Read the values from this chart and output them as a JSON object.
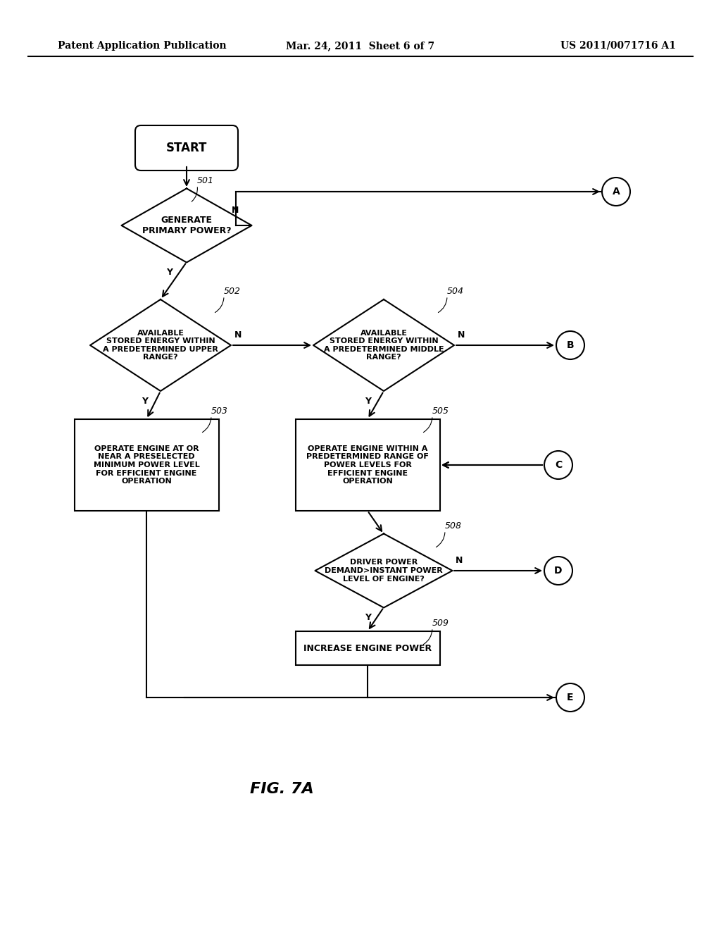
{
  "bg_color": "#ffffff",
  "line_color": "#000000",
  "header_left": "Patent Application Publication",
  "header_center": "Mar. 24, 2011  Sheet 6 of 7",
  "header_right": "US 2011/0071716 A1",
  "figure_label": "FIG. 7A",
  "fig_width": 10.24,
  "fig_height": 13.2,
  "dpi": 100
}
